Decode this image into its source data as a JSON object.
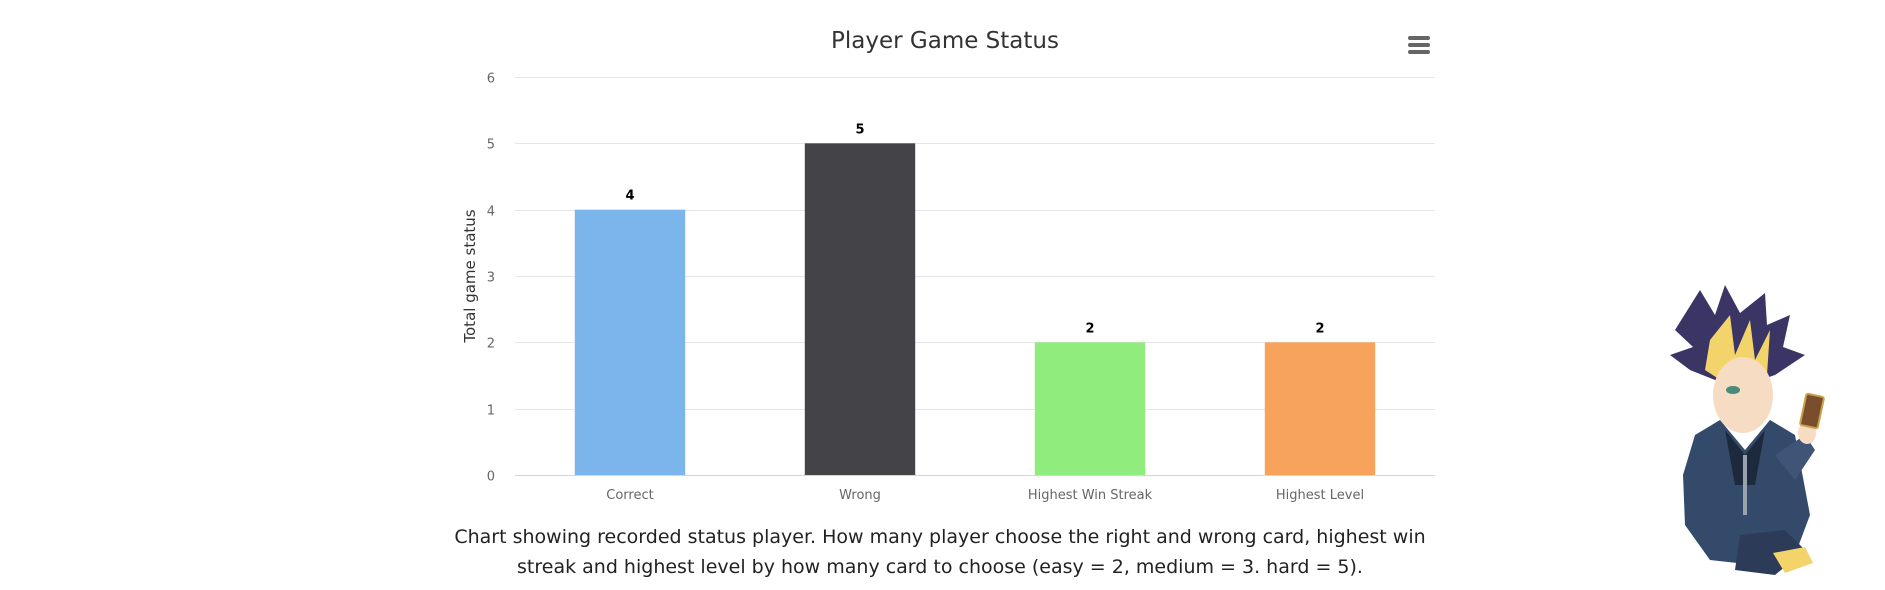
{
  "menu": {
    "icon": "hamburger-menu-icon"
  },
  "chart_data": {
    "type": "bar",
    "title": "Player Game Status",
    "xlabel": "",
    "ylabel": "Total game status",
    "categories": [
      "Correct",
      "Wrong",
      "Highest Win Streak",
      "Highest Level"
    ],
    "values": [
      4,
      5,
      2,
      2
    ],
    "colors": [
      "#7cb5ec",
      "#434348",
      "#90ed7d",
      "#f7a35c"
    ],
    "ylim": [
      0,
      6
    ],
    "yticks": [
      0,
      1,
      2,
      3,
      4,
      5,
      6
    ],
    "grid": true,
    "data_labels": true
  },
  "caption": {
    "text": "Chart showing recorded status player. How many player choose the right and wrong card, highest win streak and highest level by how many card to choose (easy = 2, medium = 3. hard = 5)."
  },
  "illustration": {
    "icon": "anime-character-holding-card-icon"
  }
}
